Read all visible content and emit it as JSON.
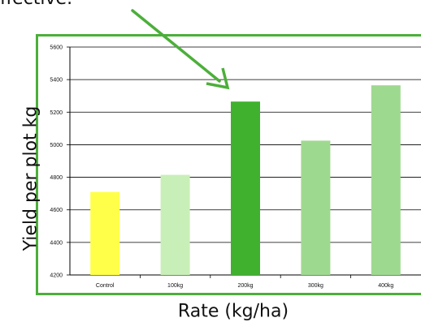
{
  "header": {
    "partial_text": "ffective."
  },
  "chart_data": {
    "type": "bar",
    "xlabel": "Rate (kg/ha)",
    "ylabel": "Yield per plot kg",
    "categories": [
      "Control",
      "100kg",
      "200kg",
      "300kg",
      "400kg"
    ],
    "values": [
      4710,
      4815,
      5265,
      5025,
      5365
    ],
    "ylim": [
      4200,
      5600
    ],
    "yticks": [
      4200,
      4400,
      4600,
      4800,
      5000,
      5200,
      5400,
      5600
    ],
    "grid": true,
    "bar_colors": [
      "#ffff4a",
      "#c8efb8",
      "#3fb12e",
      "#9ed990",
      "#9ed990"
    ],
    "frame_color": "#4caf3a",
    "annotation": {
      "type": "arrow",
      "color": "#4caf3a",
      "points_to": "200kg"
    }
  }
}
